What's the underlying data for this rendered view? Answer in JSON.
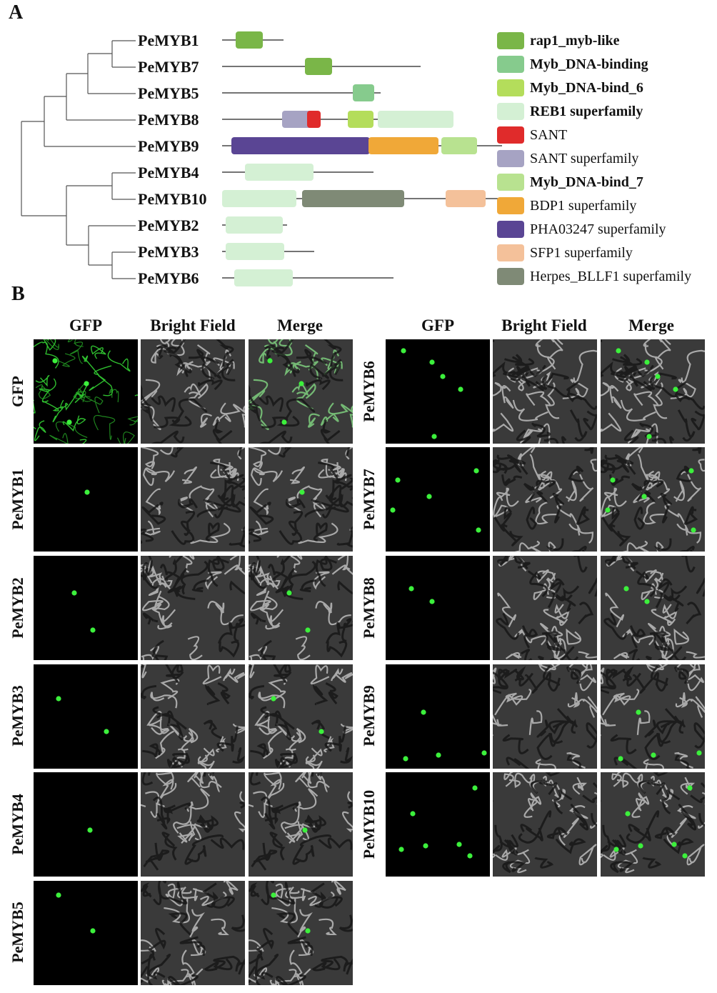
{
  "panel_a": {
    "letter": "A",
    "genes": [
      "PeMYB1",
      "PeMYB7",
      "PeMYB5",
      "PeMYB8",
      "PeMYB9",
      "PeMYB4",
      "PeMYB10",
      "PeMYB2",
      "PeMYB3",
      "PeMYB6"
    ],
    "legend": [
      {
        "label": "rap1_myb-like",
        "color": "#7ab648",
        "bold": true
      },
      {
        "label": "Myb_DNA-binding",
        "color": "#86cb8d",
        "bold": true
      },
      {
        "label": "Myb_DNA-bind_6",
        "color": "#b4dd5b",
        "bold": true
      },
      {
        "label": "REB1 superfamily",
        "color": "#d4f0d4",
        "bold": true
      },
      {
        "label": "SANT",
        "color": "#e02b2b",
        "bold": false
      },
      {
        "label": "SANT superfamily",
        "color": "#a6a3c3",
        "bold": false
      },
      {
        "label": "Myb_DNA-bind_7",
        "color": "#b8e290",
        "bold": true
      },
      {
        "label": "BDP1 superfamily",
        "color": "#f0a838",
        "bold": false
      },
      {
        "label": "PHA03247 superfamily",
        "color": "#5a4594",
        "bold": false
      },
      {
        "label": "SFP1 superfamily",
        "color": "#f4c19a",
        "bold": false
      },
      {
        "label": "Herpes_BLLF1 superfamily",
        "color": "#7f8a76",
        "bold": false
      }
    ]
  },
  "panel_b": {
    "letter": "B",
    "column_headers": [
      "GFP",
      "Bright Field",
      "Merge"
    ],
    "left_rows": [
      "GFP",
      "PeMYB1",
      "PeMYB2",
      "PeMYB3",
      "PeMYB4",
      "PeMYB5"
    ],
    "right_rows": [
      "PeMYB6",
      "PeMYB7",
      "PeMYB8",
      "PeMYB9",
      "PeMYB10"
    ]
  }
}
